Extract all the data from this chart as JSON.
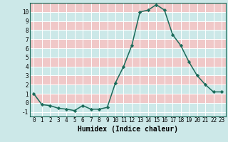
{
  "x": [
    0,
    1,
    2,
    3,
    4,
    5,
    6,
    7,
    8,
    9,
    10,
    11,
    12,
    13,
    14,
    15,
    16,
    17,
    18,
    19,
    20,
    21,
    22,
    23
  ],
  "y": [
    1,
    -0.2,
    -0.3,
    -0.6,
    -0.7,
    -0.85,
    -0.3,
    -0.7,
    -0.7,
    -0.5,
    2.2,
    4.0,
    6.3,
    10.0,
    10.2,
    10.8,
    10.2,
    7.5,
    6.3,
    4.5,
    3.0,
    2.0,
    1.2,
    1.2
  ],
  "line_color": "#1a6b5a",
  "marker": "D",
  "marker_size": 2.2,
  "bg_color": "#cce8e8",
  "stripe_color": "#f0c8c8",
  "grid_line_color": "#ffffff",
  "xlabel": "Humidex (Indice chaleur)",
  "ylim": [
    -1.5,
    11.0
  ],
  "xlim": [
    -0.5,
    23.5
  ],
  "yticks": [
    -1,
    0,
    1,
    2,
    3,
    4,
    5,
    6,
    7,
    8,
    9,
    10
  ],
  "xticks": [
    0,
    1,
    2,
    3,
    4,
    5,
    6,
    7,
    8,
    9,
    10,
    11,
    12,
    13,
    14,
    15,
    16,
    17,
    18,
    19,
    20,
    21,
    22,
    23
  ],
  "tick_fontsize": 5.5,
  "xlabel_fontsize": 7
}
